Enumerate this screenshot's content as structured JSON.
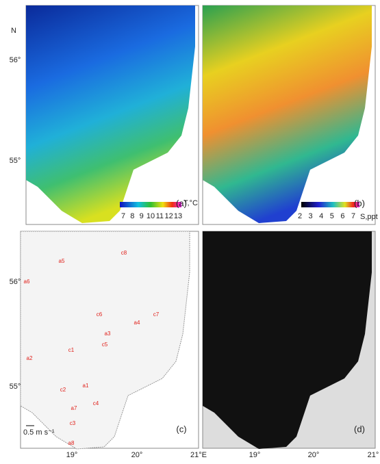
{
  "panels": [
    "(a)",
    "(b)",
    "(c)",
    "(d)"
  ],
  "lat_labels": [
    "N",
    "56°",
    "55°",
    "56°",
    "55°"
  ],
  "lon_labels": [
    "19°",
    "20°",
    "21°E",
    "19°",
    "20°",
    "21°"
  ],
  "colorbars": [
    {
      "ticks": [
        7,
        8,
        9,
        10,
        11,
        12,
        13
      ],
      "unit": "T,°C"
    },
    {
      "ticks": [
        2,
        3,
        4,
        5,
        6,
        7
      ],
      "unit": "S,ppt"
    }
  ],
  "eddies": [
    "a5",
    "c8",
    "a6",
    "c6",
    "a4",
    "c7",
    "a3",
    "c5",
    "c1",
    "a2",
    "a1",
    "c2",
    "c4",
    "a7",
    "c3",
    "a8"
  ],
  "scale": "0.5 m s⁻¹"
}
